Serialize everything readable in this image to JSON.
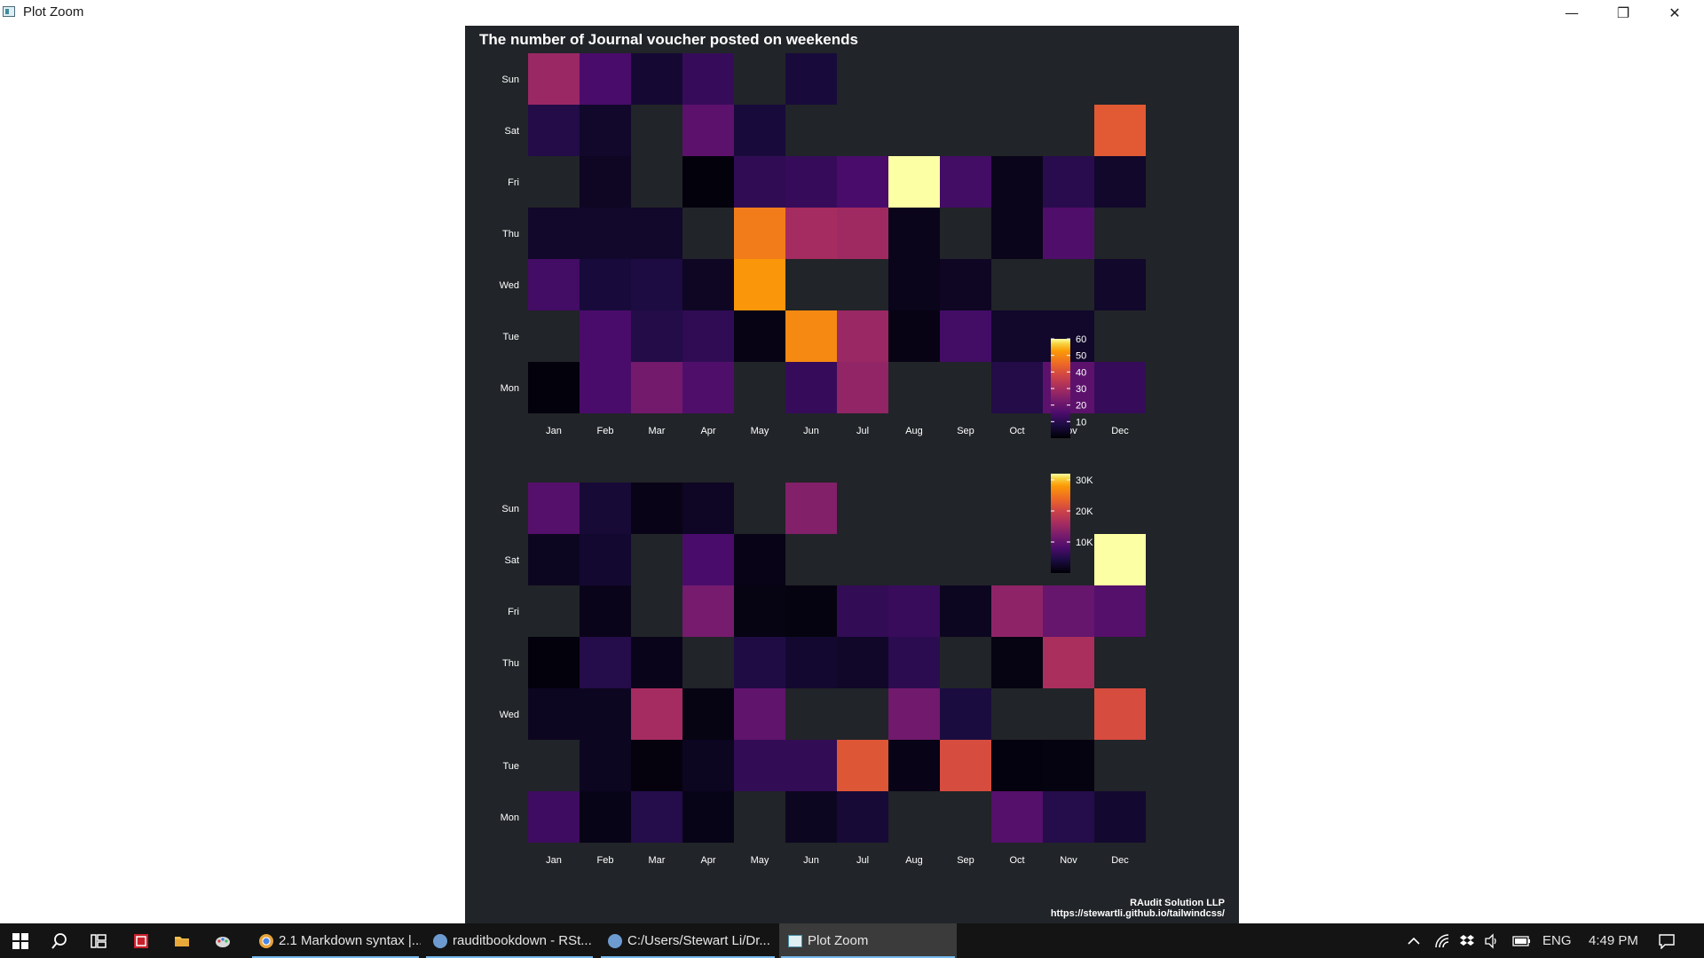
{
  "window": {
    "title": "Plot Zoom",
    "minimize_glyph": "—",
    "maximize_glyph": "❐",
    "close_glyph": "✕"
  },
  "plot": {
    "title": "The number of Journal voucher posted on weekends",
    "footer_line1": "RAudit Solution LLP",
    "footer_line2": "https://stewartli.github.io/tailwindcss/"
  },
  "chart_data": [
    {
      "type": "heatmap",
      "title": "The number of Journal voucher posted on weekends",
      "x_categories": [
        "Jan",
        "Feb",
        "Mar",
        "Apr",
        "May",
        "Jun",
        "Jul",
        "Aug",
        "Sep",
        "Oct",
        "Nov",
        "Dec"
      ],
      "y_categories": [
        "Sun",
        "Sat",
        "Fri",
        "Thu",
        "Wed",
        "Tue",
        "Mon"
      ],
      "colorscale": "inferno",
      "color_range": [
        0,
        60
      ],
      "legend_ticks": [
        {
          "value": 60,
          "label": "60"
        },
        {
          "value": 50,
          "label": "50"
        },
        {
          "value": 40,
          "label": "40"
        },
        {
          "value": 30,
          "label": "30"
        },
        {
          "value": 20,
          "label": "20"
        },
        {
          "value": 10,
          "label": "10"
        }
      ],
      "values": [
        [
          28,
          15,
          6,
          12,
          null,
          7,
          null,
          null,
          null,
          null,
          null,
          null
        ],
        [
          9,
          5,
          null,
          18,
          7,
          null,
          null,
          null,
          null,
          null,
          null,
          42
        ],
        [
          null,
          4,
          null,
          1,
          11,
          12,
          15,
          62,
          14,
          3,
          10,
          5
        ],
        [
          5,
          5,
          5,
          null,
          48,
          30,
          29,
          3,
          null,
          3,
          16,
          null
        ],
        [
          14,
          7,
          8,
          4,
          52,
          null,
          null,
          3,
          4,
          null,
          null,
          5
        ],
        [
          null,
          15,
          9,
          11,
          2,
          50,
          28,
          2,
          14,
          5,
          5,
          null
        ],
        [
          1,
          15,
          22,
          16,
          null,
          12,
          27,
          null,
          null,
          9,
          18,
          12
        ]
      ]
    },
    {
      "type": "heatmap",
      "x_categories": [
        "Jan",
        "Feb",
        "Mar",
        "Apr",
        "May",
        "Jun",
        "Jul",
        "Aug",
        "Sep",
        "Oct",
        "Nov",
        "Dec"
      ],
      "y_categories": [
        "Sun",
        "Sat",
        "Fri",
        "Thu",
        "Wed",
        "Tue",
        "Mon"
      ],
      "colorscale": "inferno",
      "color_range": [
        0,
        32000
      ],
      "legend_ticks": [
        {
          "value": 30000,
          "label": "30K"
        },
        {
          "value": 20000,
          "label": "20K"
        },
        {
          "value": 10000,
          "label": "10K"
        }
      ],
      "values": [
        [
          9000,
          3500,
          1200,
          2200,
          null,
          13000,
          null,
          null,
          null,
          null,
          null,
          null
        ],
        [
          2000,
          3000,
          null,
          8000,
          1200,
          null,
          null,
          null,
          null,
          null,
          null,
          33000
        ],
        [
          null,
          1500,
          null,
          12000,
          1000,
          900,
          6000,
          6500,
          2000,
          14000,
          10500,
          9000
        ],
        [
          500,
          5000,
          1500,
          null,
          4500,
          3000,
          2500,
          5500,
          null,
          1000,
          16500,
          null
        ],
        [
          2000,
          2000,
          16000,
          1000,
          10000,
          null,
          null,
          11500,
          4000,
          null,
          null,
          21000
        ],
        [
          null,
          2000,
          700,
          2000,
          6000,
          6000,
          22000,
          1200,
          21000,
          800,
          900,
          null
        ],
        [
          7000,
          1300,
          5000,
          1300,
          null,
          2000,
          3500,
          null,
          null,
          9000,
          5000,
          3000
        ]
      ]
    }
  ],
  "taskbar": {
    "apps": [
      {
        "label": "2.1 Markdown syntax |...",
        "icon_color": "#e8a33d"
      },
      {
        "label": "rauditbookdown - RSt...",
        "icon_color": "#6d9bd1"
      },
      {
        "label": "C:/Users/Stewart Li/Dr...",
        "icon_color": "#6d9bd1"
      },
      {
        "label": "Plot Zoom",
        "icon_color": "#4a8fa6"
      }
    ],
    "language": "ENG",
    "time": "4:49 PM",
    "icons": [
      "windows-start-icon",
      "search-icon",
      "task-view-icon",
      "pdf-app-icon",
      "file-explorer-icon",
      "paint-app-icon"
    ]
  }
}
